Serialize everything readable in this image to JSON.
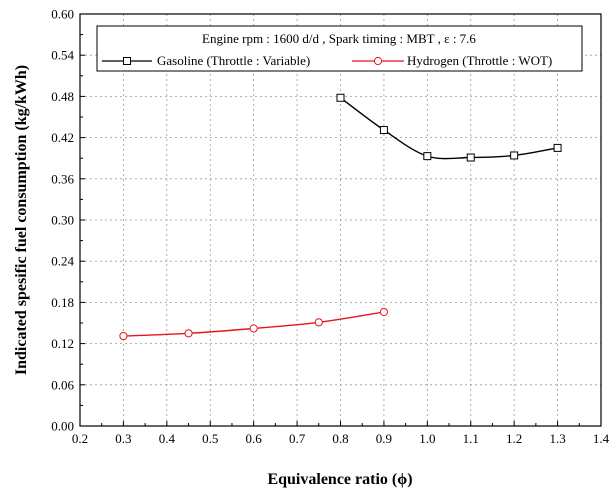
{
  "chart_data": {
    "type": "line",
    "xlabel": "Equivalence ratio (ϕ)",
    "ylabel": "Indicated spesific fuel consumption (kg/kWh)",
    "xlim": [
      0.2,
      1.4
    ],
    "ylim": [
      0.0,
      0.6
    ],
    "xticks": [
      "0.2",
      "0.3",
      "0.4",
      "0.5",
      "0.6",
      "0.7",
      "0.8",
      "0.9",
      "1.0",
      "1.1",
      "1.2",
      "1.3",
      "1.4"
    ],
    "yticks": [
      "0.00",
      "0.06",
      "0.12",
      "0.18",
      "0.24",
      "0.30",
      "0.36",
      "0.42",
      "0.48",
      "0.54",
      "0.60"
    ],
    "grid": "dotted",
    "legend_position": "top",
    "legend_header": "Engine rpm   : 1600 d/d  ,  Spark timing : MBT  ,  ε : 7.6",
    "series": [
      {
        "name": "Gasoline  (Throttle : Variable)",
        "color": "#000000",
        "marker": "square",
        "x": [
          0.8,
          0.9,
          1.0,
          1.1,
          1.2,
          1.3
        ],
        "y": [
          0.478,
          0.431,
          0.393,
          0.391,
          0.394,
          0.405
        ]
      },
      {
        "name": "Hydrogen (Throttle : WOT)",
        "color": "#e8141b",
        "marker": "circle",
        "x": [
          0.3,
          0.45,
          0.6,
          0.75,
          0.9
        ],
        "y": [
          0.131,
          0.135,
          0.142,
          0.151,
          0.166
        ]
      }
    ]
  }
}
